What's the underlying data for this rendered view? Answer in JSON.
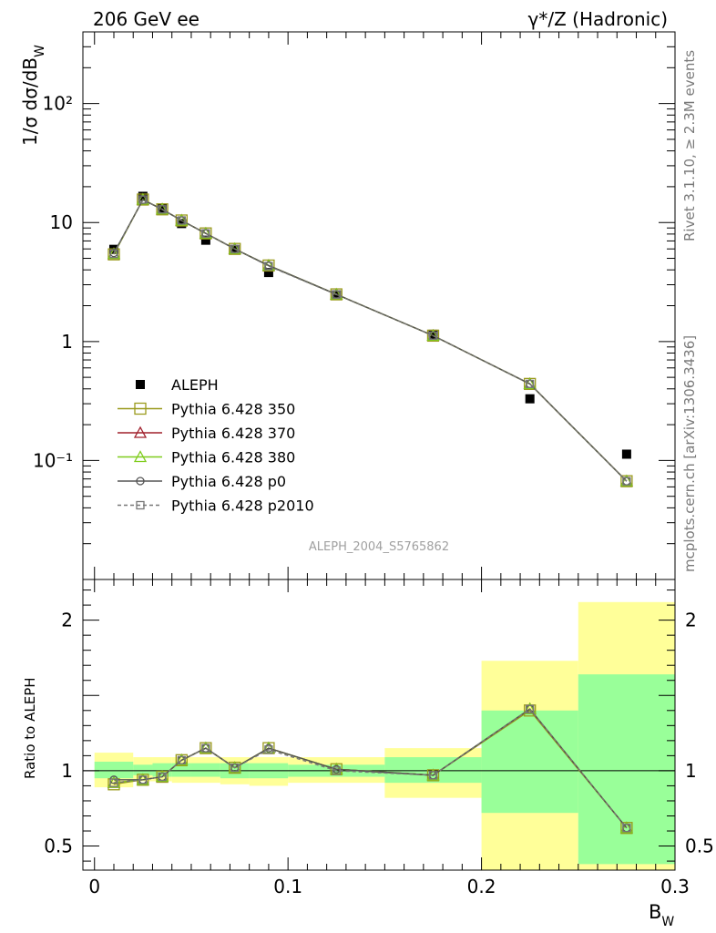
{
  "header": {
    "left": "206 GeV ee",
    "right": "γ*/Z (Hadronic)"
  },
  "side_labels": {
    "top": "Rivet 3.1.10, ≥ 2.3M events",
    "bottom": "mcplots.cern.ch [arXiv:1306.3436]"
  },
  "watermark": "ALEPH_2004_S5765862",
  "chart_data": [
    {
      "type": "scatter",
      "panel": "main",
      "ylabel": "1/σ  dσ/dB_W",
      "yscale": "log",
      "ylim": [
        0.01,
        400
      ],
      "y_ticks": [
        {
          "value": 0.1,
          "label": "10⁻¹"
        },
        {
          "value": 1,
          "label": "1"
        },
        {
          "value": 10,
          "label": "10"
        },
        {
          "value": 100,
          "label": "10²"
        }
      ],
      "x": [
        0.01,
        0.025,
        0.035,
        0.045,
        0.0575,
        0.0725,
        0.09,
        0.125,
        0.175,
        0.225,
        0.275
      ],
      "x_edges": [
        0.0,
        0.02,
        0.03,
        0.04,
        0.05,
        0.065,
        0.08,
        0.1,
        0.15,
        0.2,
        0.25,
        0.3
      ],
      "series": [
        {
          "name": "ALEPH",
          "marker": "square-filled",
          "color": "#000000",
          "values": [
            5.95,
            16.6,
            13.2,
            9.8,
            7.1,
            5.95,
            3.8,
            2.47,
            1.15,
            0.33,
            0.113
          ]
        },
        {
          "name": "Pythia 6.428 350",
          "marker": "square-open",
          "color": "#9a9a1c",
          "values": [
            5.4,
            15.6,
            12.9,
            10.4,
            8.1,
            6.0,
            4.35,
            2.49,
            1.12,
            0.44,
            0.067
          ]
        },
        {
          "name": "Pythia 6.428 370",
          "marker": "triangle-open",
          "color": "#a0202c",
          "values": [
            5.45,
            15.6,
            12.9,
            10.4,
            8.1,
            6.0,
            4.35,
            2.49,
            1.12,
            0.44,
            0.067
          ]
        },
        {
          "name": "Pythia 6.428 380",
          "marker": "triangle-open",
          "color": "#7fcc1c",
          "values": [
            5.45,
            15.6,
            12.9,
            10.4,
            8.1,
            6.0,
            4.35,
            2.49,
            1.12,
            0.44,
            0.067
          ]
        },
        {
          "name": "Pythia 6.428 p0",
          "marker": "circle-open",
          "color": "#555555",
          "values": [
            5.55,
            15.5,
            12.9,
            10.4,
            8.1,
            6.0,
            4.35,
            2.49,
            1.12,
            0.44,
            0.067
          ]
        },
        {
          "name": "Pythia 6.428 p2010",
          "marker": "square-open-dashed",
          "color": "#777777",
          "values": [
            5.45,
            15.6,
            12.9,
            10.4,
            8.1,
            6.0,
            4.3,
            2.48,
            1.12,
            0.44,
            0.067
          ]
        }
      ]
    },
    {
      "type": "scatter",
      "panel": "ratio",
      "ylabel": "Ratio to ALEPH",
      "xlabel": "B_W",
      "xlim": [
        -0.006,
        0.3
      ],
      "ylim": [
        0.34,
        2.27
      ],
      "x_ticks": [
        0,
        0.1,
        0.2,
        0.3
      ],
      "y_ticks": [
        0.5,
        1,
        2
      ],
      "reference_line": 1,
      "band_edges": [
        0.0,
        0.02,
        0.03,
        0.04,
        0.05,
        0.065,
        0.08,
        0.1,
        0.15,
        0.2,
        0.25,
        0.3
      ],
      "band_yellow": [
        [
          0.89,
          1.12
        ],
        [
          0.93,
          1.09
        ],
        [
          0.93,
          1.09
        ],
        [
          0.92,
          1.09
        ],
        [
          0.92,
          1.09
        ],
        [
          0.91,
          1.09
        ],
        [
          0.9,
          1.09
        ],
        [
          0.92,
          1.09
        ],
        [
          0.82,
          1.15
        ],
        [
          0.34,
          1.73
        ],
        [
          0.34,
          2.12
        ]
      ],
      "band_green": [
        [
          0.95,
          1.06
        ],
        [
          0.97,
          1.04
        ],
        [
          0.96,
          1.05
        ],
        [
          0.96,
          1.05
        ],
        [
          0.96,
          1.05
        ],
        [
          0.95,
          1.05
        ],
        [
          0.95,
          1.05
        ],
        [
          0.96,
          1.04
        ],
        [
          0.92,
          1.09
        ],
        [
          0.72,
          1.4
        ],
        [
          0.38,
          1.64
        ]
      ],
      "x": [
        0.01,
        0.025,
        0.035,
        0.045,
        0.0575,
        0.0725,
        0.09,
        0.125,
        0.175,
        0.225,
        0.275
      ],
      "series": [
        {
          "name": "Pythia 6.428 350",
          "color": "#9a9a1c",
          "values": [
            0.91,
            0.94,
            0.96,
            1.07,
            1.15,
            1.02,
            1.15,
            1.01,
            0.97,
            1.4,
            0.62
          ]
        },
        {
          "name": "Pythia 6.428 370",
          "color": "#a0202c",
          "values": [
            0.92,
            0.94,
            0.96,
            1.07,
            1.15,
            1.02,
            1.15,
            1.01,
            0.97,
            1.41,
            0.62
          ]
        },
        {
          "name": "Pythia 6.428 380",
          "color": "#7fcc1c",
          "values": [
            0.92,
            0.94,
            0.96,
            1.07,
            1.15,
            1.02,
            1.15,
            1.01,
            0.97,
            1.41,
            0.62
          ]
        },
        {
          "name": "Pythia 6.428 p0",
          "color": "#555555",
          "values": [
            0.94,
            0.94,
            0.96,
            1.07,
            1.15,
            1.02,
            1.15,
            1.01,
            0.97,
            1.41,
            0.62
          ]
        },
        {
          "name": "Pythia 6.428 p2010",
          "color": "#777777",
          "values": [
            0.92,
            0.94,
            0.96,
            1.07,
            1.15,
            1.02,
            1.14,
            1.0,
            0.97,
            1.41,
            0.62
          ]
        }
      ]
    }
  ],
  "colors": {
    "band_yellow": "#ffff99",
    "band_green": "#99ff99"
  }
}
